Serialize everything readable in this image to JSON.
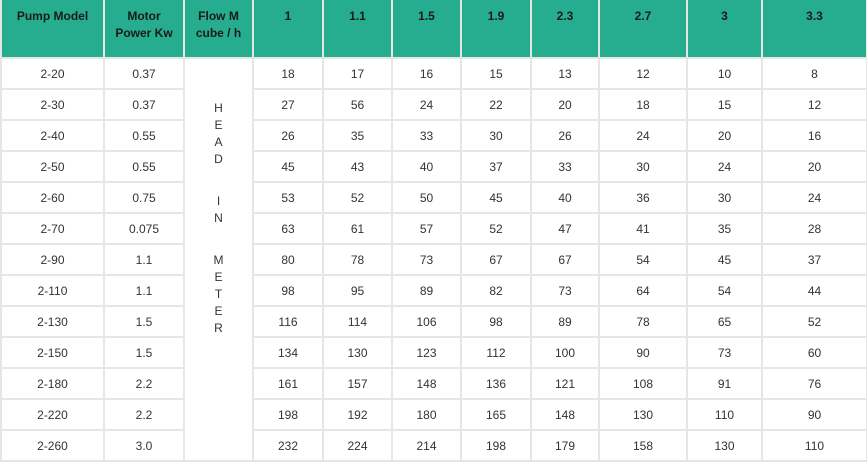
{
  "header": {
    "pump_model": "Pump Model",
    "motor_power": "Motor Power Kw",
    "flow": "Flow M cube / h",
    "flows": [
      "1",
      "1.1",
      "1.5",
      "1.9",
      "2.3",
      "2.7",
      "3",
      "3.3"
    ]
  },
  "vertical_label": {
    "groups": [
      [
        "H",
        "E",
        "A",
        "D"
      ],
      [
        "I",
        "N"
      ],
      [
        "M",
        "E",
        "T",
        "E",
        "R"
      ]
    ],
    "text": "HEAD IN METER"
  },
  "rows": [
    {
      "model": "2-20",
      "power": "0.37",
      "heads": [
        "18",
        "17",
        "16",
        "15",
        "13",
        "12",
        "10",
        "8"
      ]
    },
    {
      "model": "2-30",
      "power": "0.37",
      "heads": [
        "27",
        "56",
        "24",
        "22",
        "20",
        "18",
        "15",
        "12"
      ]
    },
    {
      "model": "2-40",
      "power": "0.55",
      "heads": [
        "26",
        "35",
        "33",
        "30",
        "26",
        "24",
        "20",
        "16"
      ]
    },
    {
      "model": "2-50",
      "power": "0.55",
      "heads": [
        "45",
        "43",
        "40",
        "37",
        "33",
        "30",
        "24",
        "20"
      ]
    },
    {
      "model": "2-60",
      "power": "0.75",
      "heads": [
        "53",
        "52",
        "50",
        "45",
        "40",
        "36",
        "30",
        "24"
      ]
    },
    {
      "model": "2-70",
      "power": "0.075",
      "heads": [
        "63",
        "61",
        "57",
        "52",
        "47",
        "41",
        "35",
        "28"
      ]
    },
    {
      "model": "2-90",
      "power": "1.1",
      "heads": [
        "80",
        "78",
        "73",
        "67",
        "67",
        "54",
        "45",
        "37"
      ]
    },
    {
      "model": "2-110",
      "power": "1.1",
      "heads": [
        "98",
        "95",
        "89",
        "82",
        "73",
        "64",
        "54",
        "44"
      ]
    },
    {
      "model": "2-130",
      "power": "1.5",
      "heads": [
        "116",
        "114",
        "106",
        "98",
        "89",
        "78",
        "65",
        "52"
      ]
    },
    {
      "model": "2-150",
      "power": "1.5",
      "heads": [
        "134",
        "130",
        "123",
        "112",
        "100",
        "90",
        "73",
        "60"
      ]
    },
    {
      "model": "2-180",
      "power": "2.2",
      "heads": [
        "161",
        "157",
        "148",
        "136",
        "121",
        "108",
        "91",
        "76"
      ]
    },
    {
      "model": "2-220",
      "power": "2.2",
      "heads": [
        "198",
        "192",
        "180",
        "165",
        "148",
        "130",
        "110",
        "90"
      ]
    },
    {
      "model": "2-260",
      "power": "3.0",
      "heads": [
        "232",
        "224",
        "214",
        "198",
        "179",
        "158",
        "130",
        "110"
      ]
    }
  ],
  "colors": {
    "header_bg": "#26ad8f",
    "grid": "#e6e6e6"
  }
}
